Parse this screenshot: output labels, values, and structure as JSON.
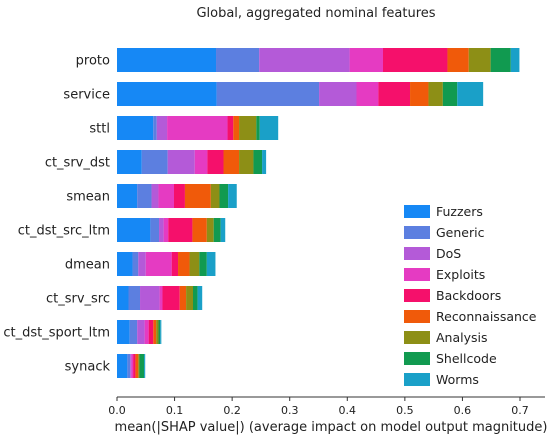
{
  "chart_data": {
    "type": "bar",
    "orientation": "horizontal",
    "stacked": true,
    "title": "Global, aggregated nominal features",
    "xlabel": "mean(|SHAP value|) (average impact on model output magnitude)",
    "ylabel": "",
    "xlim": [
      0.0,
      0.7
    ],
    "xticks": [
      "0.0",
      "0.1",
      "0.2",
      "0.3",
      "0.4",
      "0.5",
      "0.6",
      "0.7"
    ],
    "grid": false,
    "legend_position": "bottom-right",
    "categories": [
      "proto",
      "service",
      "sttl",
      "ct_srv_dst",
      "smean",
      "ct_dst_src_ltm",
      "dmean",
      "ct_srv_src",
      "ct_dst_sport_ltm",
      "synack"
    ],
    "series": [
      {
        "name": "Fuzzers",
        "color": "#1688f5",
        "values": [
          0.172,
          0.173,
          0.063,
          0.043,
          0.035,
          0.058,
          0.027,
          0.02,
          0.022,
          0.018
        ]
      },
      {
        "name": "Generic",
        "color": "#5c7fe0",
        "values": [
          0.075,
          0.178,
          0.006,
          0.045,
          0.025,
          0.015,
          0.01,
          0.02,
          0.013,
          0.005
        ]
      },
      {
        "name": "DoS",
        "color": "#b45ad8",
        "values": [
          0.157,
          0.065,
          0.018,
          0.047,
          0.012,
          0.008,
          0.013,
          0.034,
          0.013,
          0.002
        ]
      },
      {
        "name": "Exploits",
        "color": "#e53bc2",
        "values": [
          0.058,
          0.038,
          0.105,
          0.022,
          0.027,
          0.008,
          0.045,
          0.005,
          0.007,
          0.003
        ]
      },
      {
        "name": "Backdoors",
        "color": "#f5106b",
        "values": [
          0.112,
          0.055,
          0.01,
          0.028,
          0.019,
          0.042,
          0.011,
          0.03,
          0.008,
          0.004
        ]
      },
      {
        "name": "Reconnaissance",
        "color": "#f05a0a",
        "values": [
          0.037,
          0.032,
          0.01,
          0.027,
          0.045,
          0.025,
          0.02,
          0.011,
          0.005,
          0.005
        ]
      },
      {
        "name": "Analysis",
        "color": "#8d8f16",
        "values": [
          0.038,
          0.025,
          0.03,
          0.025,
          0.015,
          0.012,
          0.017,
          0.012,
          0.004,
          0.002
        ]
      },
      {
        "name": "Shellcode",
        "color": "#119a50",
        "values": [
          0.035,
          0.025,
          0.006,
          0.015,
          0.015,
          0.012,
          0.013,
          0.008,
          0.003,
          0.008
        ]
      },
      {
        "name": "Worms",
        "color": "#1aa0c8",
        "values": [
          0.015,
          0.045,
          0.032,
          0.007,
          0.015,
          0.008,
          0.015,
          0.008,
          0.002,
          0.002
        ]
      }
    ]
  }
}
